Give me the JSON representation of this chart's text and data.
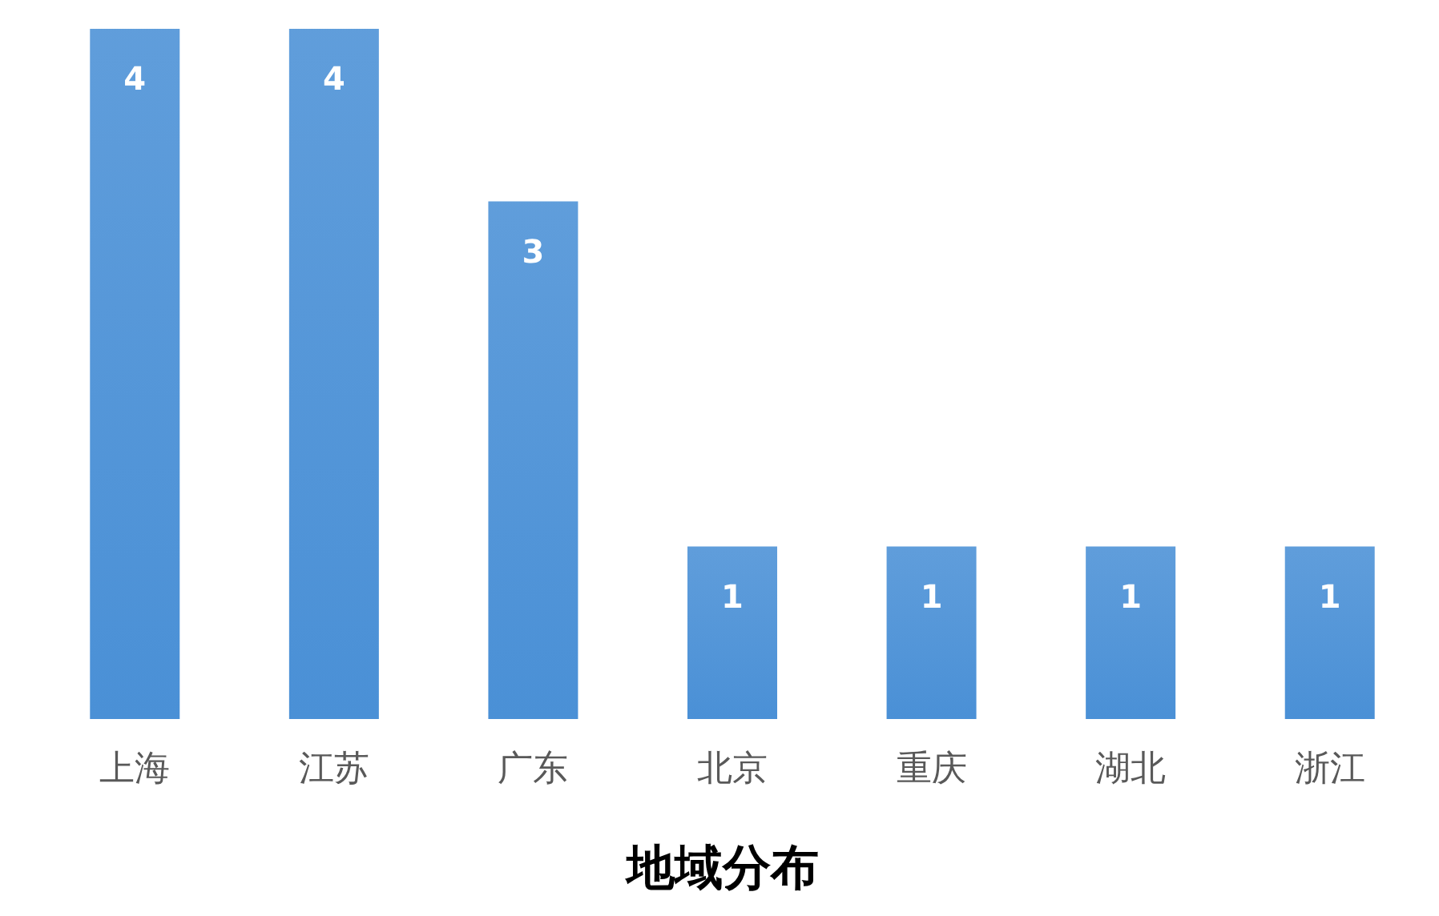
{
  "chart_data": {
    "type": "bar",
    "title": "地域分布",
    "categories": [
      "上海",
      "江苏",
      "广东",
      "北京",
      "重庆",
      "湖北",
      "浙江"
    ],
    "values": [
      4,
      4,
      3,
      1,
      1,
      1,
      1
    ],
    "color": "#4a90d6",
    "data_labels": true
  }
}
